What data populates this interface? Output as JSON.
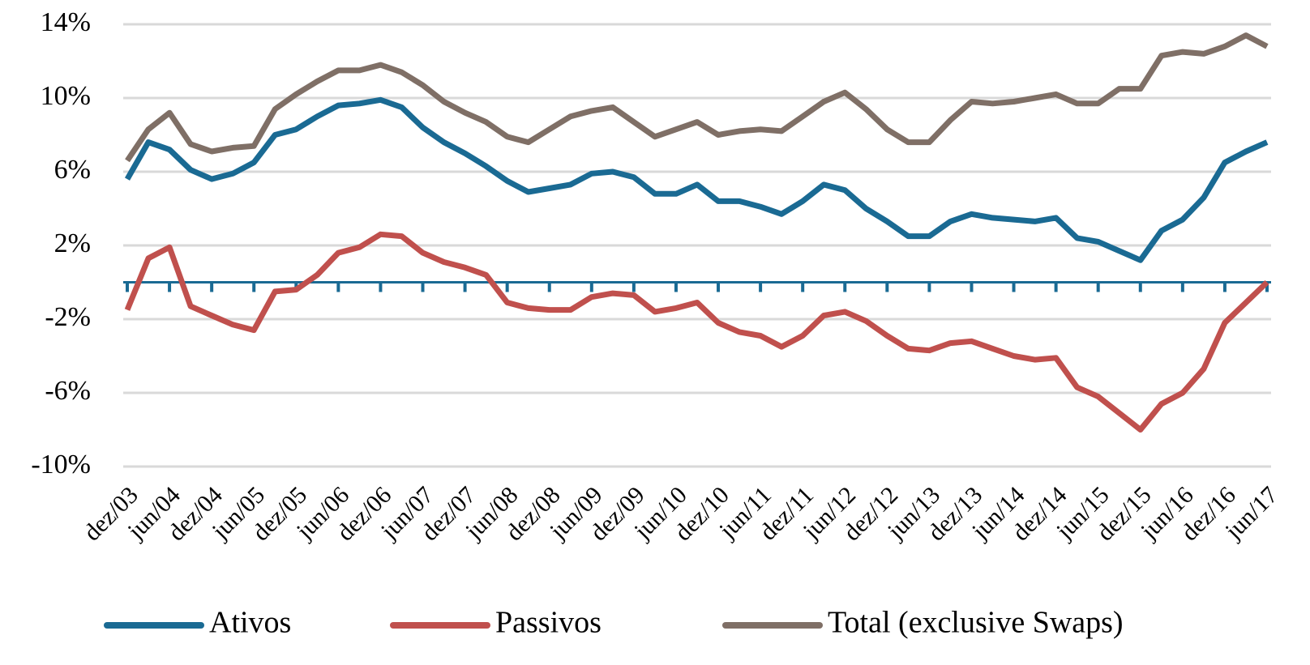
{
  "chart_data": {
    "type": "line",
    "categories": [
      "dez/03",
      null,
      "jun/04",
      null,
      "dez/04",
      null,
      "jun/05",
      null,
      "dez/05",
      null,
      "jun/06",
      null,
      "dez/06",
      null,
      "jun/07",
      null,
      "dez/07",
      null,
      "jun/08",
      null,
      "dez/08",
      null,
      "jun/09",
      null,
      "dez/09",
      null,
      "jun/10",
      null,
      "dez/10",
      null,
      "jun/11",
      null,
      "dez/11",
      null,
      "jun/12",
      null,
      "dez/12",
      null,
      "jun/13",
      null,
      "dez/13",
      null,
      "jun/14",
      null,
      "dez/14",
      null,
      "jun/15",
      null,
      "dez/15",
      null,
      "jun/16",
      null,
      "dez/16",
      null,
      "jun/17"
    ],
    "series": [
      {
        "name": "Ativos",
        "color": "#1a6a93",
        "values": [
          5.6,
          7.6,
          7.2,
          6.1,
          5.6,
          5.9,
          6.5,
          8.0,
          8.3,
          9.0,
          9.6,
          9.7,
          9.9,
          9.5,
          8.4,
          7.6,
          7.0,
          6.3,
          5.5,
          4.9,
          5.1,
          5.3,
          5.9,
          6.0,
          5.7,
          4.8,
          4.8,
          5.3,
          4.4,
          4.4,
          4.1,
          3.7,
          4.4,
          5.3,
          5.0,
          4.0,
          3.3,
          2.5,
          2.5,
          3.3,
          3.7,
          3.5,
          3.4,
          3.3,
          3.5,
          2.4,
          2.2,
          1.7,
          1.2,
          2.8,
          3.4,
          4.6,
          6.5,
          7.1,
          7.6
        ]
      },
      {
        "name": "Passivos",
        "color": "#c0504d",
        "values": [
          -1.5,
          1.3,
          1.9,
          -1.3,
          -1.8,
          -2.3,
          -2.6,
          -0.5,
          -0.4,
          0.4,
          1.6,
          1.9,
          2.6,
          2.5,
          1.6,
          1.1,
          0.8,
          0.4,
          -1.1,
          -1.4,
          -1.5,
          -1.5,
          -0.8,
          -0.6,
          -0.7,
          -1.6,
          -1.4,
          -1.1,
          -2.2,
          -2.7,
          -2.9,
          -3.5,
          -2.9,
          -1.8,
          -1.6,
          -2.1,
          -2.9,
          -3.6,
          -3.7,
          -3.3,
          -3.2,
          -3.6,
          -4.0,
          -4.2,
          -4.1,
          -5.7,
          -6.2,
          -7.1,
          -8.0,
          -6.6,
          -6.0,
          -4.7,
          -2.2,
          -1.1,
          0.0
        ]
      },
      {
        "name": "Total (exclusive Swaps)",
        "color": "#7f6f66",
        "values": [
          6.6,
          8.3,
          9.2,
          7.5,
          7.1,
          7.3,
          7.4,
          9.4,
          10.2,
          10.9,
          11.5,
          11.5,
          11.8,
          11.4,
          10.7,
          9.8,
          9.2,
          8.7,
          7.9,
          7.6,
          8.3,
          9.0,
          9.3,
          9.5,
          8.7,
          7.9,
          8.3,
          8.7,
          8.0,
          8.2,
          8.3,
          8.2,
          9.0,
          9.8,
          10.3,
          9.4,
          8.3,
          7.6,
          7.6,
          8.8,
          9.8,
          9.7,
          9.8,
          10.0,
          10.2,
          9.7,
          9.7,
          10.5,
          10.5,
          12.3,
          12.5,
          12.4,
          12.8,
          13.4,
          12.8
        ]
      }
    ],
    "ylim": [
      -10,
      14
    ],
    "yticks": [
      {
        "value": 14,
        "label": "14%"
      },
      {
        "value": 10,
        "label": "10%"
      },
      {
        "value": 6,
        "label": "6%"
      },
      {
        "value": 2,
        "label": "2%"
      },
      {
        "value": -2,
        "label": "-2%"
      },
      {
        "value": -6,
        "label": "-6%"
      },
      {
        "value": -10,
        "label": "-10%"
      }
    ],
    "grid": true
  }
}
